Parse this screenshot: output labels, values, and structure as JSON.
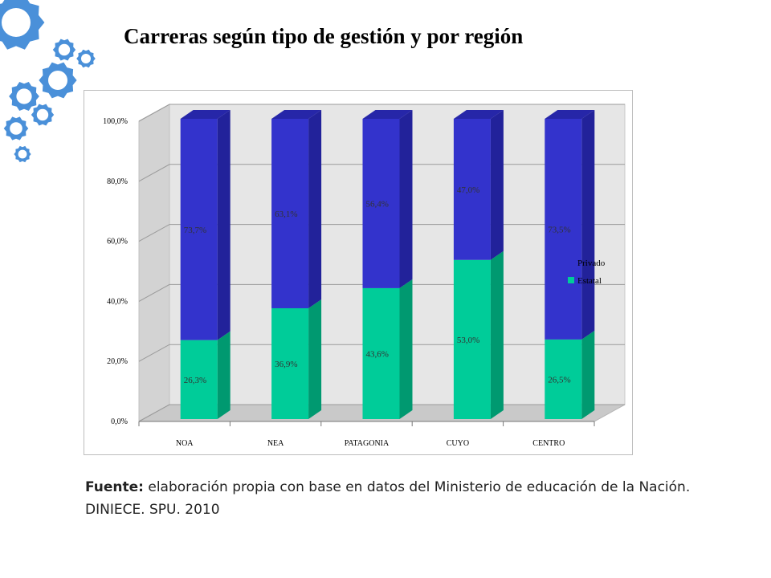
{
  "slide": {
    "title": "Carreras según tipo de gestión y  por región",
    "source_label": "Fuente:",
    "source_text": " elaboración propia con base en datos del Ministerio de educación de la Nación. DINIECE. SPU. 2010"
  },
  "colors": {
    "privado": "#3333cc",
    "privado_side": "#22229a",
    "privado_top": "#2626a8",
    "estatal": "#00cc99",
    "estatal_side": "#009970",
    "gear": "#4a90d9"
  },
  "chart_data": {
    "type": "bar",
    "stacked": true,
    "categories": [
      "NOA",
      "NEA",
      "PATAGONIA",
      "CUYO",
      "CENTRO"
    ],
    "series": [
      {
        "name": "Estatal",
        "values": [
          26.3,
          36.9,
          43.6,
          53.0,
          26.5
        ],
        "labels": [
          "26,3%",
          "36,9%",
          "43,6%",
          "53,0%",
          "26,5%"
        ]
      },
      {
        "name": "Privado",
        "values": [
          73.7,
          63.1,
          56.4,
          47.0,
          73.5
        ],
        "labels": [
          "73,7%",
          "63,1%",
          "56,4%",
          "47,0%",
          "73,5%"
        ]
      }
    ],
    "yticks": [
      "0,0%",
      "20,0%",
      "40,0%",
      "60,0%",
      "80,0%",
      "100,0%"
    ],
    "ylim": [
      0,
      100
    ],
    "legend": [
      "Privado",
      "Estatal"
    ],
    "legend_position": "right",
    "grid": true
  }
}
